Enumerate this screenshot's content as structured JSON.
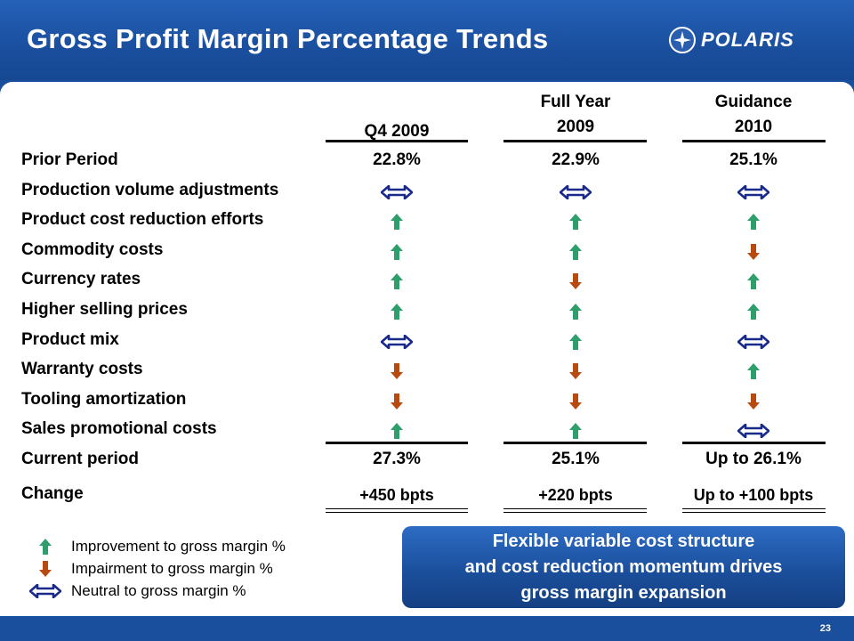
{
  "slide": {
    "title": "Gross Profit Margin Percentage Trends",
    "logo_text": "POLARIS",
    "page_number": "23"
  },
  "colors": {
    "improve": "#2e9e6b",
    "impair": "#b84a10",
    "neutral": "#1a2a8a"
  },
  "table": {
    "columns": [
      {
        "line1": "",
        "line2": "Q4 2009"
      },
      {
        "line1": "Full Year",
        "line2": "2009"
      },
      {
        "line1": "Guidance",
        "line2": "2010"
      }
    ],
    "prior_period": {
      "label": "Prior Period",
      "values": [
        "22.8%",
        "22.9%",
        "25.1%"
      ]
    },
    "factors": [
      {
        "label": "Production volume adjustments",
        "trends": [
          "neutral",
          "neutral",
          "neutral"
        ]
      },
      {
        "label": "Product cost reduction efforts",
        "trends": [
          "up",
          "up",
          "up"
        ]
      },
      {
        "label": "Commodity costs",
        "trends": [
          "up",
          "up",
          "down"
        ]
      },
      {
        "label": "Currency rates",
        "trends": [
          "up",
          "down",
          "up"
        ]
      },
      {
        "label": "Higher selling prices",
        "trends": [
          "up",
          "up",
          "up"
        ]
      },
      {
        "label": "Product mix",
        "trends": [
          "neutral",
          "up",
          "neutral"
        ]
      },
      {
        "label": "Warranty costs",
        "trends": [
          "down",
          "down",
          "up"
        ]
      },
      {
        "label": "Tooling amortization",
        "trends": [
          "down",
          "down",
          "down"
        ]
      },
      {
        "label": "Sales promotional costs",
        "trends": [
          "up",
          "up",
          "neutral"
        ]
      }
    ],
    "current_period": {
      "label": "Current period",
      "values": [
        "27.3%",
        "25.1%",
        "Up to 26.1%"
      ]
    },
    "change": {
      "label": "Change",
      "values": [
        "+450 bpts",
        "+220 bpts",
        "Up to +100 bpts"
      ]
    }
  },
  "legend": [
    {
      "icon": "up",
      "label": "Improvement to gross margin %"
    },
    {
      "icon": "down",
      "label": "Impairment to gross margin %"
    },
    {
      "icon": "neutral",
      "label": "Neutral to gross margin %"
    }
  ],
  "callout": {
    "line1": "Flexible variable cost structure",
    "line2": "and cost reduction momentum drives",
    "line3": "gross margin expansion"
  }
}
